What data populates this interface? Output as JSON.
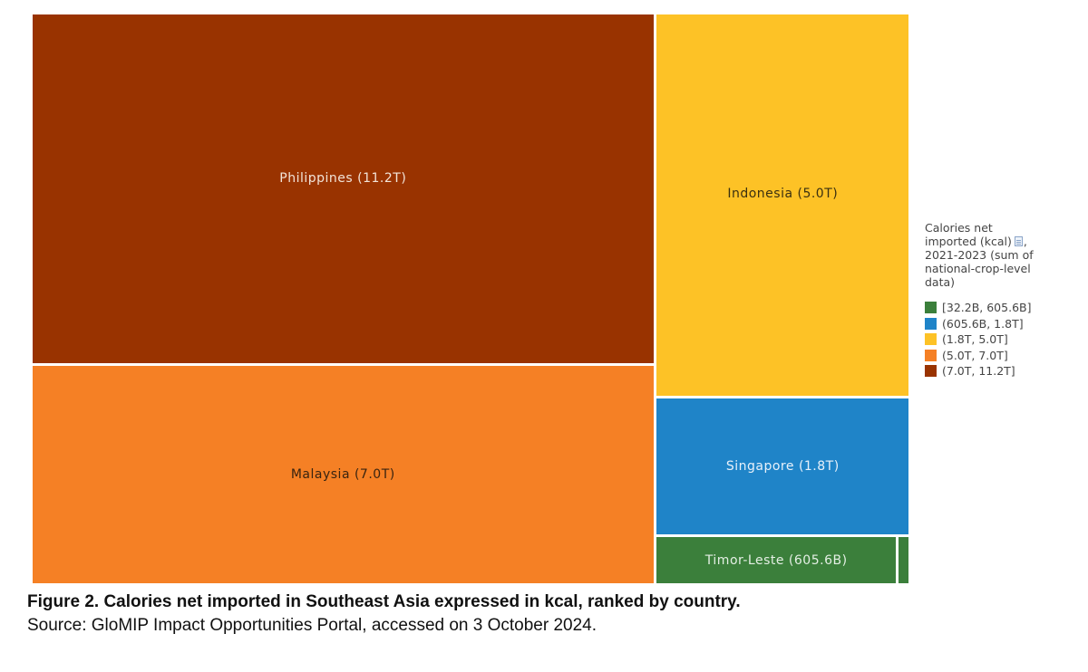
{
  "chart_data": {
    "type": "treemap",
    "items": [
      {
        "name": "Philippines",
        "label": "Philippines (11.2T)",
        "value": 11.2,
        "unit": "T",
        "color": "#993300",
        "label_color": "#f2e4d8"
      },
      {
        "name": "Malaysia",
        "label": "Malaysia (7.0T)",
        "value": 7.0,
        "unit": "T",
        "color": "#f58025",
        "label_color": "#3a2410"
      },
      {
        "name": "Indonesia",
        "label": "Indonesia (5.0T)",
        "value": 5.0,
        "unit": "T",
        "color": "#fdc226",
        "label_color": "#3a3010"
      },
      {
        "name": "Singapore",
        "label": "Singapore (1.8T)",
        "value": 1.8,
        "unit": "T",
        "color": "#1f84c8",
        "label_color": "#e8f1fa"
      },
      {
        "name": "Timor-Leste",
        "label": "Timor-Leste (605.6B)",
        "value": 0.6056,
        "unit": "B",
        "color": "#3b7f3b",
        "label_color": "#e4efe4"
      },
      {
        "name": "",
        "label": "",
        "value": 0.0322,
        "color": "#3b7f3b",
        "label_color": "#e4efe4"
      }
    ],
    "legend": {
      "title_text": "Calories net\nimported (kcal)",
      "title_suffix": ",\n2021-2023 (sum of\nnational-crop-level\ndata)",
      "title_icon": "document-icon",
      "placement": "right",
      "entries": [
        {
          "label": "[32.2B, 605.6B]",
          "color": "#3b7f3b"
        },
        {
          "label": "(605.6B, 1.8T]",
          "color": "#1f84c8"
        },
        {
          "label": "(1.8T, 5.0T]",
          "color": "#fdc226"
        },
        {
          "label": "(5.0T, 7.0T]",
          "color": "#f58025"
        },
        {
          "label": "(7.0T, 11.2T]",
          "color": "#993300"
        }
      ]
    }
  },
  "caption": {
    "title": "Figure 2. Calories net imported in Southeast Asia expressed in kcal, ranked by country.",
    "source": "Source: GloMIP Impact Opportunities Portal, accessed on 3 October 2024."
  }
}
